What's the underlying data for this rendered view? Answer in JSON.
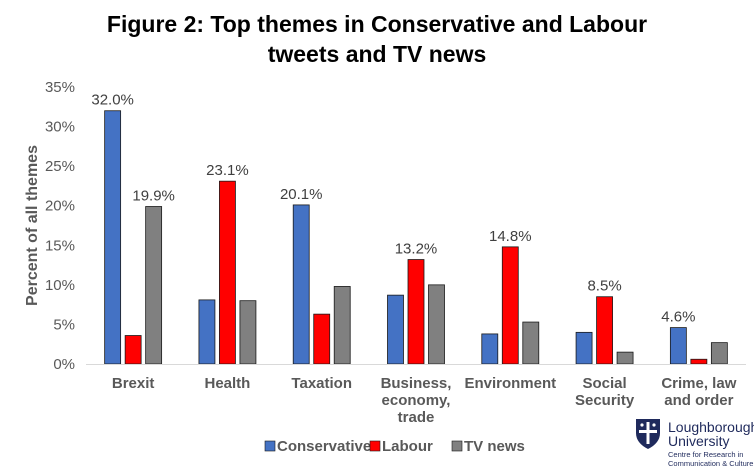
{
  "chart_data": {
    "type": "bar",
    "title_lines": [
      "Figure 2: Top themes in Conservative and Labour",
      "tweets and TV news"
    ],
    "ylabel": "Percent of all themes",
    "xlabel": "",
    "ylim": [
      0,
      35
    ],
    "yticks": [
      "0%",
      "5%",
      "10%",
      "15%",
      "20%",
      "25%",
      "30%",
      "35%"
    ],
    "grid": false,
    "legend_position": "bottom",
    "categories": [
      [
        "Brexit"
      ],
      [
        "Health"
      ],
      [
        "Taxation"
      ],
      [
        "Business,",
        "economy,",
        "trade"
      ],
      [
        "Environment"
      ],
      [
        "Social",
        "Security"
      ],
      [
        "Crime, law",
        "and order"
      ]
    ],
    "series": [
      {
        "name": "Conservatives",
        "color": "#4472C4",
        "values": [
          32.0,
          8.1,
          20.1,
          8.7,
          3.8,
          4.0,
          4.6
        ]
      },
      {
        "name": "Labour",
        "color": "#FF0000",
        "values": [
          3.6,
          23.1,
          6.3,
          13.2,
          14.8,
          8.5,
          0.6
        ]
      },
      {
        "name": "TV news",
        "color": "#808080",
        "values": [
          19.9,
          8.0,
          9.8,
          10.0,
          5.3,
          1.5,
          2.7
        ]
      }
    ],
    "data_labels": [
      {
        "category_index": 0,
        "series_index": 0,
        "text": "32.0%"
      },
      {
        "category_index": 0,
        "series_index": 2,
        "text": "19.9%"
      },
      {
        "category_index": 1,
        "series_index": 1,
        "text": "23.1%"
      },
      {
        "category_index": 2,
        "series_index": 0,
        "text": "20.1%"
      },
      {
        "category_index": 3,
        "series_index": 1,
        "text": "13.2%"
      },
      {
        "category_index": 4,
        "series_index": 1,
        "text": "14.8%"
      },
      {
        "category_index": 5,
        "series_index": 1,
        "text": "8.5%"
      },
      {
        "category_index": 6,
        "series_index": 0,
        "text": "4.6%"
      }
    ]
  },
  "logo": {
    "name_lines": [
      "Loughborough",
      "University"
    ],
    "sub_lines": [
      "Centre for Research in",
      "Communication & Culture"
    ],
    "color": "#1f2a5c"
  }
}
